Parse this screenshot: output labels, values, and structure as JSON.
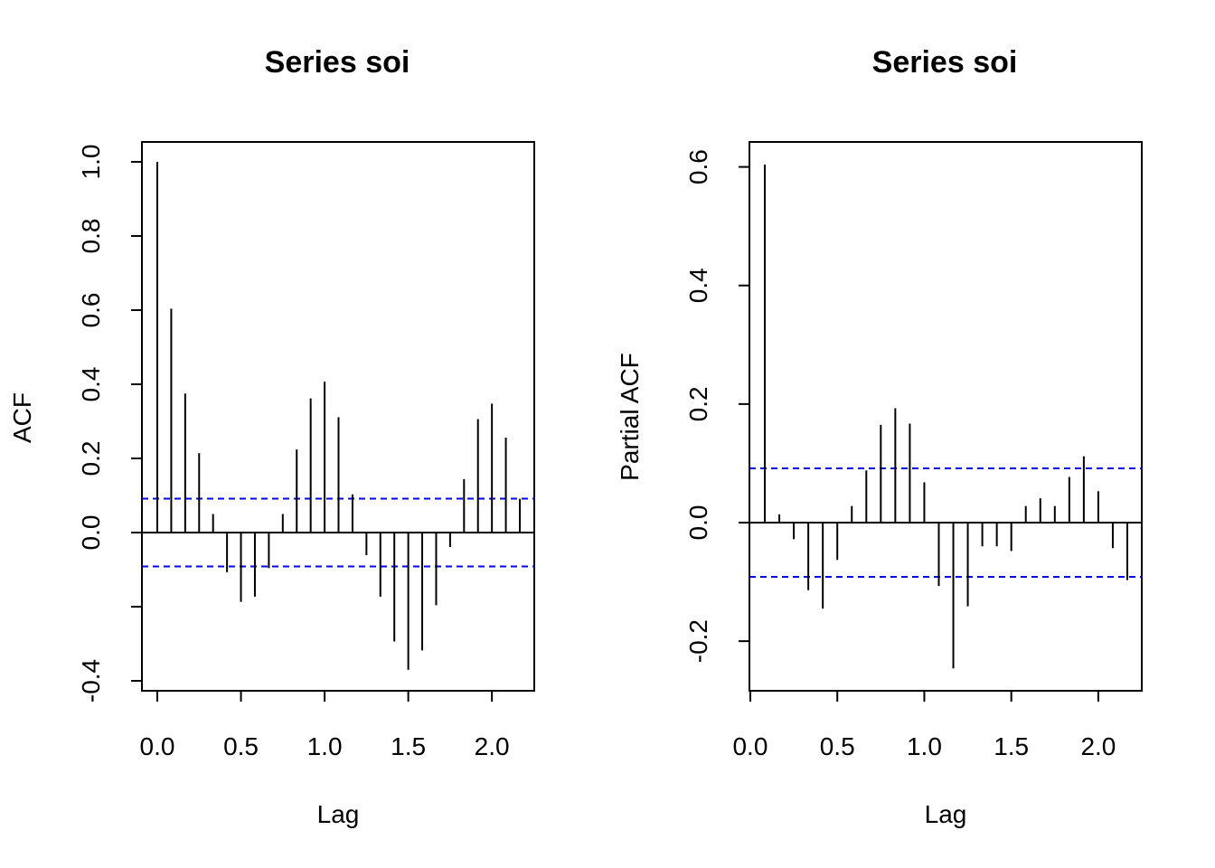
{
  "chart_data": [
    {
      "type": "bar",
      "title": "Series  soi",
      "xlabel": "Lag",
      "ylabel": "ACF",
      "xlim": [
        0,
        2.17
      ],
      "ylim": [
        -0.4,
        1.0
      ],
      "xticks": [
        "0.0",
        "0.5",
        "1.0",
        "1.5",
        "2.0"
      ],
      "yticks": [
        "-0.4",
        "0.0",
        "0.2",
        "0.4",
        "0.6",
        "0.8",
        "1.0"
      ],
      "ci": 0.0915,
      "ci_color": "#0000ff",
      "x": [
        0.0,
        0.0833,
        0.1667,
        0.25,
        0.3333,
        0.4167,
        0.5,
        0.5833,
        0.6667,
        0.75,
        0.8333,
        0.9167,
        1.0,
        1.0833,
        1.1667,
        1.25,
        1.3333,
        1.4167,
        1.5,
        1.5833,
        1.6667,
        1.75,
        1.8333,
        1.9167,
        2.0,
        2.0833,
        2.1667
      ],
      "values": [
        1.0,
        0.604,
        0.375,
        0.214,
        0.05,
        -0.107,
        -0.187,
        -0.173,
        -0.096,
        0.05,
        0.224,
        0.362,
        0.407,
        0.311,
        0.103,
        -0.061,
        -0.173,
        -0.294,
        -0.37,
        -0.318,
        -0.196,
        -0.039,
        0.144,
        0.306,
        0.348,
        0.256,
        0.091
      ]
    },
    {
      "type": "bar",
      "title": "Series  soi",
      "xlabel": "Lag",
      "ylabel": "Partial ACF",
      "xlim": [
        0.0833,
        2.17
      ],
      "ylim": [
        -0.25,
        0.6
      ],
      "xticks": [
        "0.0",
        "0.5",
        "1.0",
        "1.5",
        "2.0"
      ],
      "yticks": [
        "-0.2",
        "0.0",
        "0.2",
        "0.4",
        "0.6"
      ],
      "ci": 0.0915,
      "ci_color": "#0000ff",
      "x": [
        0.0833,
        0.1667,
        0.25,
        0.3333,
        0.4167,
        0.5,
        0.5833,
        0.6667,
        0.75,
        0.8333,
        0.9167,
        1.0,
        1.0833,
        1.1667,
        1.25,
        1.3333,
        1.4167,
        1.5,
        1.5833,
        1.6667,
        1.75,
        1.8333,
        1.9167,
        2.0,
        2.0833,
        2.1667
      ],
      "values": [
        0.604,
        0.014,
        -0.028,
        -0.114,
        -0.145,
        -0.063,
        0.028,
        0.088,
        0.165,
        0.193,
        0.167,
        0.068,
        -0.107,
        -0.246,
        -0.141,
        -0.04,
        -0.04,
        -0.048,
        0.028,
        0.041,
        0.028,
        0.077,
        0.112,
        0.053,
        -0.043,
        -0.097
      ]
    }
  ]
}
